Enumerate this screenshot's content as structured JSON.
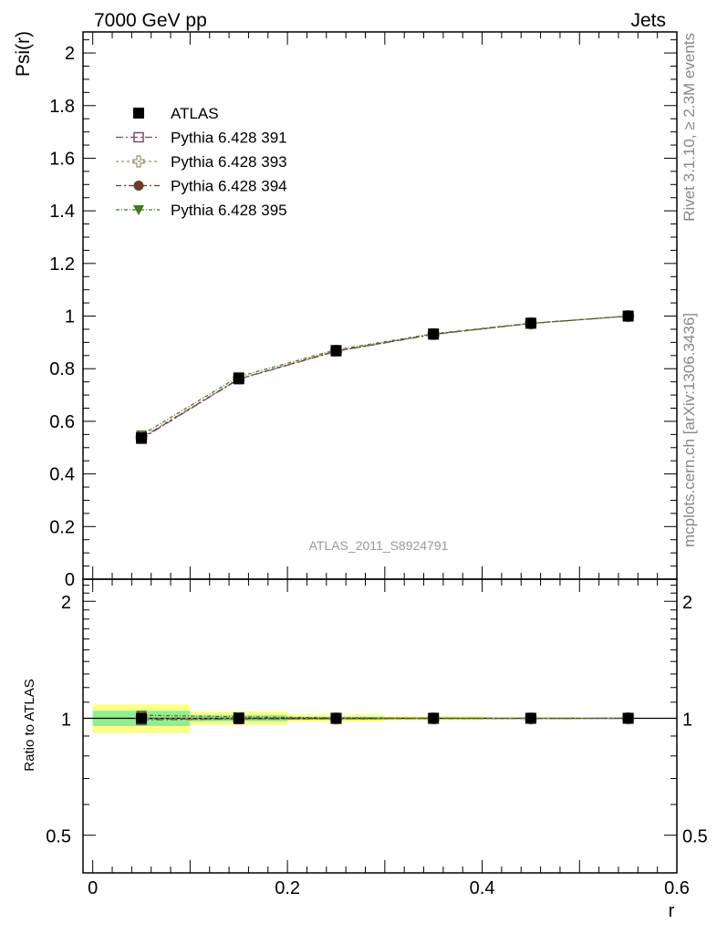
{
  "header": {
    "left_label": "7000 GeV pp",
    "right_label": "Jets"
  },
  "watermark": "ATLAS_2011_S8924791",
  "side_labels": {
    "top": "Rivet 3.1.10, ≥ 2.3M events",
    "bottom": "mcplots.cern.ch [arXiv:1306.3436]"
  },
  "chart_data": [
    {
      "type": "line",
      "ylabel": "Psi(r)",
      "xlim": [
        -0.01,
        0.6
      ],
      "ylim": [
        0,
        2.08
      ],
      "y_ticks": [
        0,
        0.2,
        0.4,
        0.6,
        0.8,
        1,
        1.2,
        1.4,
        1.6,
        1.8,
        2
      ],
      "legend_position": "top-left",
      "x": [
        0.05,
        0.15,
        0.25,
        0.35,
        0.45,
        0.55
      ],
      "series": [
        {
          "name": "ATLAS",
          "marker": "square",
          "color": "#000000",
          "values": [
            0.538,
            0.763,
            0.869,
            0.932,
            0.973,
            1.0
          ]
        },
        {
          "name": "Pythia 6.428 391",
          "marker": "open-square",
          "color": "#7a4a6a",
          "values": [
            0.533,
            0.76,
            0.866,
            0.93,
            0.972,
            1.0
          ]
        },
        {
          "name": "Pythia 6.428 393",
          "marker": "open-cross",
          "color": "#a0906a",
          "values": [
            0.539,
            0.762,
            0.868,
            0.931,
            0.972,
            1.0
          ]
        },
        {
          "name": "Pythia 6.428 394",
          "marker": "circle",
          "color": "#6b3d26",
          "values": [
            0.536,
            0.761,
            0.867,
            0.931,
            0.972,
            1.0
          ]
        },
        {
          "name": "Pythia 6.428 395",
          "marker": "triangle-down",
          "color": "#3e7a18",
          "values": [
            0.548,
            0.77,
            0.872,
            0.933,
            0.973,
            1.0
          ]
        }
      ]
    },
    {
      "type": "line",
      "ylabel": "Ratio to ATLAS",
      "xlabel": "r",
      "xlim": [
        -0.01,
        0.6
      ],
      "ylim": [
        0.4,
        2.28
      ],
      "y_ticks": [
        0.5,
        1,
        2
      ],
      "x_ticks": [
        0,
        0.2,
        0.4,
        0.6
      ],
      "x": [
        0.05,
        0.15,
        0.25,
        0.35,
        0.45,
        0.55
      ],
      "bands": {
        "bins": [
          [
            0,
            0.1
          ],
          [
            0.1,
            0.2
          ],
          [
            0.2,
            0.3
          ],
          [
            0.3,
            0.4
          ],
          [
            0.4,
            0.5
          ],
          [
            0.5,
            0.6
          ]
        ],
        "stat": [
          0.045,
          0.018,
          0.009,
          0.005,
          0.003,
          0.0
        ],
        "total": [
          0.085,
          0.04,
          0.022,
          0.012,
          0.006,
          0.0
        ],
        "stat_color": "#90ee90",
        "total_color": "#ffff88"
      },
      "series": [
        {
          "name": "ATLAS",
          "values": [
            1.0,
            1.0,
            1.0,
            1.0,
            1.0,
            1.0
          ]
        },
        {
          "name": "Pythia 6.428 391",
          "values": [
            0.99,
            0.996,
            0.997,
            0.998,
            0.999,
            1.0
          ]
        },
        {
          "name": "Pythia 6.428 393",
          "values": [
            1.002,
            0.999,
            0.999,
            0.999,
            0.999,
            1.0
          ]
        },
        {
          "name": "Pythia 6.428 394",
          "values": [
            0.996,
            0.997,
            0.998,
            0.999,
            0.999,
            1.0
          ]
        },
        {
          "name": "Pythia 6.428 395",
          "values": [
            1.018,
            1.009,
            1.003,
            1.001,
            1.0,
            1.0
          ]
        }
      ]
    }
  ]
}
